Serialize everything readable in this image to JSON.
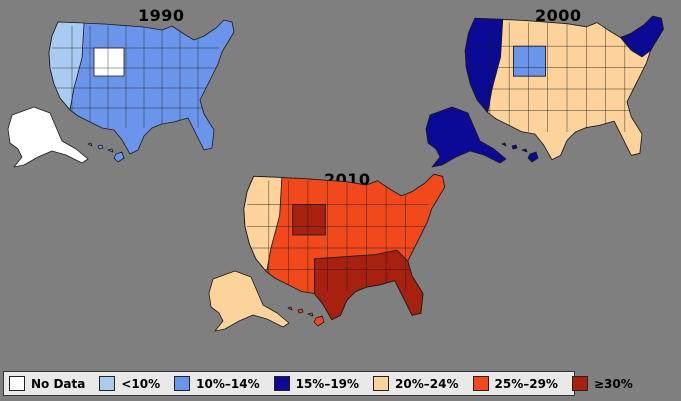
{
  "colors": {
    "no_data": "#ffffff",
    "lt10": "#a9cbf1",
    "p10_14": "#6b95ea",
    "p15_19": "#0a0a97",
    "p20_24": "#fdd39b",
    "p25_29": "#f1491b",
    "ge30": "#a8200f",
    "outline": "#1a1a1a"
  },
  "maps": [
    {
      "title": "1990",
      "base": "p10_14",
      "light": "lt10",
      "other": "no_data"
    },
    {
      "title": "2000",
      "base": "p20_24",
      "light": "p15_19",
      "other": "p10_14"
    },
    {
      "title": "2010",
      "base": "p25_29",
      "light": "p20_24",
      "other": "ge30"
    }
  ],
  "legend": [
    {
      "label": "No Data",
      "color": "no_data"
    },
    {
      "label": "<10%",
      "color": "lt10"
    },
    {
      "label": "10%–14%",
      "color": "p10_14"
    },
    {
      "label": "15%–19%",
      "color": "p15_19"
    },
    {
      "label": "20%–24%",
      "color": "p20_24"
    },
    {
      "label": "25%–29%",
      "color": "p25_29"
    },
    {
      "label": "≥30%",
      "color": "ge30"
    }
  ]
}
